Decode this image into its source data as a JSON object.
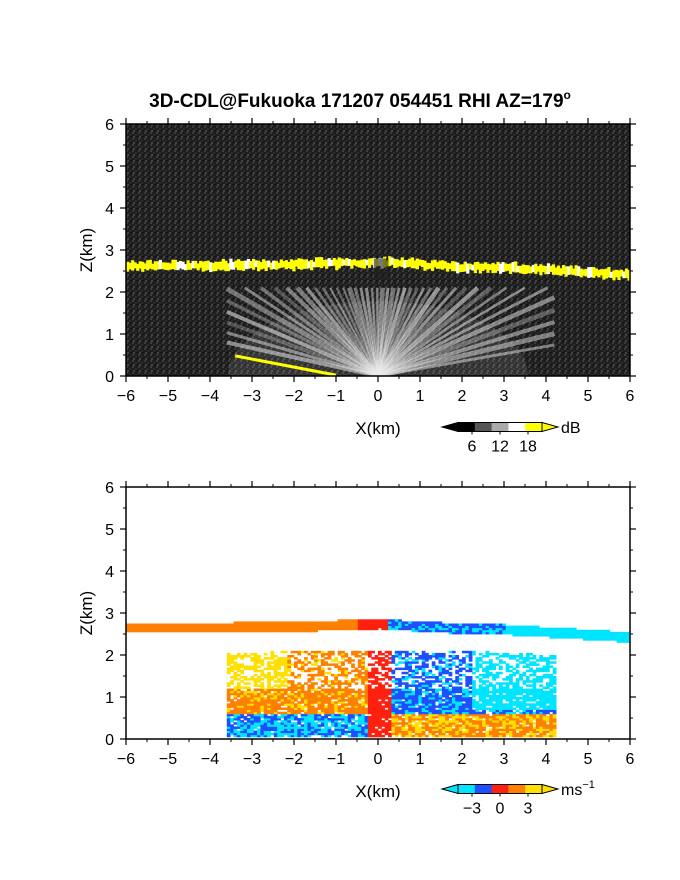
{
  "title": "3D-CDL@Fukuoka 171207 054451 RHI AZ=179",
  "title_superscript": "o",
  "colors": {
    "frame": "#000000",
    "background_plot_top": "#1e1e1e",
    "cloud_top_band": "#ffff00",
    "velocity_neg": "#1e50ff",
    "velocity_zero": "#ff2010",
    "velocity_pos": "#ffe000",
    "velocity_neg_edge": "#00e5ff"
  },
  "chart_data": [
    {
      "type": "heatmap",
      "name": "top-panel-intensity",
      "xlabel": "X(km)",
      "ylabel": "Z(km)",
      "xlim": [
        -6,
        6
      ],
      "ylim": [
        0,
        6
      ],
      "xticks": [
        -6,
        -5,
        -4,
        -3,
        -2,
        -1,
        0,
        1,
        2,
        3,
        4,
        5,
        6
      ],
      "yticks": [
        0,
        1,
        2,
        3,
        4,
        5,
        6
      ],
      "xtick_labels": [
        "−6",
        "−5",
        "−4",
        "−3",
        "−2",
        "−1",
        "0",
        "1",
        "2",
        "3",
        "4",
        "5",
        "6"
      ],
      "ytick_labels": [
        "0",
        "1",
        "2",
        "3",
        "4",
        "5",
        "6"
      ],
      "colorbar": {
        "unit": "dB",
        "ticks": [
          6,
          12,
          18
        ],
        "tick_labels": [
          "6",
          "12",
          "18"
        ],
        "colors": [
          "#000000",
          "#555555",
          "#aaaaaa",
          "#ffffff",
          "#ffff00"
        ]
      },
      "cloud_band": {
        "profile": [
          [
            -6.0,
            2.62
          ],
          [
            -5.0,
            2.62
          ],
          [
            -4.0,
            2.62
          ],
          [
            -3.0,
            2.64
          ],
          [
            -2.0,
            2.66
          ],
          [
            -1.0,
            2.68
          ],
          [
            -0.5,
            2.7
          ],
          [
            0.0,
            2.72
          ],
          [
            0.5,
            2.68
          ],
          [
            1.0,
            2.66
          ],
          [
            2.0,
            2.6
          ],
          [
            3.0,
            2.58
          ],
          [
            4.0,
            2.52
          ],
          [
            5.0,
            2.46
          ],
          [
            6.0,
            2.4
          ]
        ],
        "thickness_km": 0.22
      },
      "fan_extent": {
        "x_min": -3.6,
        "x_max": 4.2,
        "z_max": 2.1
      }
    },
    {
      "type": "heatmap",
      "name": "bottom-panel-velocity",
      "xlabel": "X(km)",
      "ylabel": "Z(km)",
      "xlim": [
        -6,
        6
      ],
      "ylim": [
        0,
        6
      ],
      "xticks": [
        -6,
        -5,
        -4,
        -3,
        -2,
        -1,
        0,
        1,
        2,
        3,
        4,
        5,
        6
      ],
      "yticks": [
        0,
        1,
        2,
        3,
        4,
        5,
        6
      ],
      "xtick_labels": [
        "−6",
        "−5",
        "−4",
        "−3",
        "−2",
        "−1",
        "0",
        "1",
        "2",
        "3",
        "4",
        "5",
        "6"
      ],
      "ytick_labels": [
        "0",
        "1",
        "2",
        "3",
        "4",
        "5",
        "6"
      ],
      "colorbar": {
        "unit": "ms",
        "unit_superscript": "−1",
        "ticks": [
          -3,
          0,
          3
        ],
        "tick_labels": [
          "−3",
          "0",
          "3"
        ],
        "colors": [
          "#00e5ff",
          "#1e50ff",
          "#ff2010",
          "#ff8000",
          "#ffe000"
        ]
      }
    }
  ]
}
